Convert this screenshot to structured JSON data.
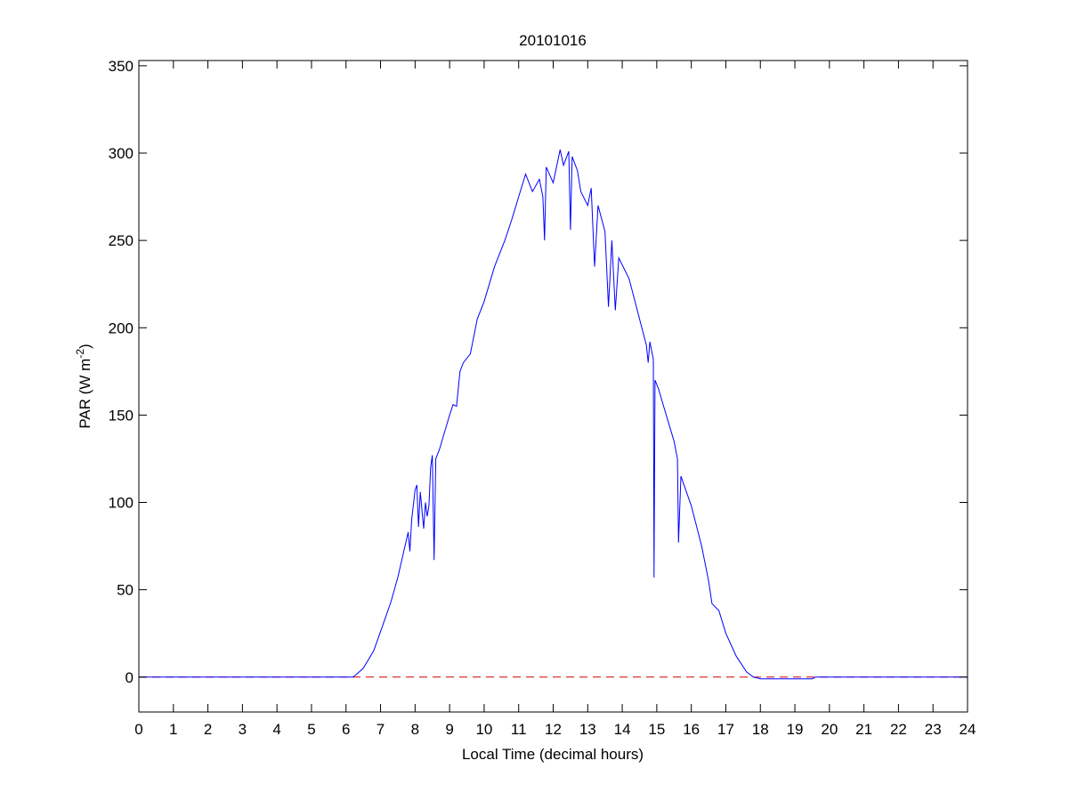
{
  "chart_data": {
    "type": "line",
    "title": "20101016",
    "xlabel": "Local Time (decimal hours)",
    "ylabel": "PAR (W m",
    "ylabel_sup": "-2",
    "ylabel_end": ")",
    "xlim": [
      0,
      24
    ],
    "ylim": [
      -20,
      353
    ],
    "xticks": [
      0,
      1,
      2,
      3,
      4,
      5,
      6,
      7,
      8,
      9,
      10,
      11,
      12,
      13,
      14,
      15,
      16,
      17,
      18,
      19,
      20,
      21,
      22,
      23,
      24
    ],
    "yticks": [
      0,
      50,
      100,
      150,
      200,
      250,
      300,
      350
    ],
    "grid": false,
    "series": [
      {
        "color": "#0000ff",
        "style": "solid",
        "x": [
          0,
          6.2,
          6.3,
          6.5,
          6.8,
          7.0,
          7.3,
          7.5,
          7.8,
          7.85,
          7.9,
          8.0,
          8.05,
          8.1,
          8.15,
          8.25,
          8.3,
          8.35,
          8.4,
          8.45,
          8.5,
          8.55,
          8.6,
          8.7,
          9.0,
          9.1,
          9.2,
          9.3,
          9.4,
          9.6,
          9.8,
          10.0,
          10.3,
          10.6,
          10.8,
          11.0,
          11.2,
          11.4,
          11.6,
          11.7,
          11.75,
          11.8,
          12.0,
          12.2,
          12.3,
          12.45,
          12.5,
          12.55,
          12.7,
          12.8,
          13.0,
          13.1,
          13.2,
          13.3,
          13.5,
          13.6,
          13.7,
          13.8,
          13.9,
          14.2,
          14.5,
          14.7,
          14.75,
          14.8,
          14.9,
          14.92,
          14.95,
          15.05,
          15.2,
          15.5,
          15.6,
          15.63,
          15.7,
          16.0,
          16.3,
          16.5,
          16.6,
          16.8,
          17.0,
          17.3,
          17.6,
          17.8,
          18.0,
          19.5,
          19.6,
          24
        ],
        "y": [
          0,
          0,
          1.5,
          5,
          15,
          26,
          43,
          57,
          83,
          72,
          90,
          107,
          110,
          86,
          106,
          85,
          100,
          92,
          98,
          120,
          127,
          67,
          125,
          130,
          150,
          156,
          155,
          175,
          180,
          185,
          205,
          215,
          235,
          250,
          262,
          275,
          288,
          278,
          285,
          275,
          250,
          292,
          283,
          302,
          293,
          301,
          256,
          298,
          290,
          278,
          270,
          280,
          235,
          270,
          255,
          212,
          250,
          210,
          240,
          228,
          205,
          190,
          180,
          192,
          182,
          57,
          170,
          165,
          155,
          135,
          125,
          77,
          115,
          98,
          75,
          55,
          42,
          38,
          25,
          12,
          3,
          0,
          -1,
          -1,
          0,
          0
        ]
      },
      {
        "color": "#cc0000",
        "style": "dashed",
        "x": [
          0,
          24
        ],
        "y": [
          0,
          0
        ]
      }
    ]
  }
}
